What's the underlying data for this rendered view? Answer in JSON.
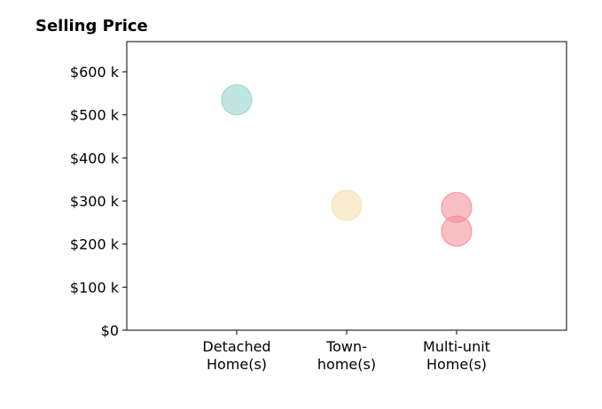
{
  "chart_data": {
    "type": "scatter",
    "title": "Selling Price",
    "xlabel": "",
    "ylabel": "",
    "categories": [
      [
        "Detached",
        "Home(s)"
      ],
      [
        "Town-",
        "home(s)"
      ],
      [
        "Multi-unit",
        "Home(s)"
      ]
    ],
    "xlim": [
      -1,
      3
    ],
    "ylim": [
      0,
      670
    ],
    "y_ticks": [
      0,
      100,
      200,
      300,
      400,
      500,
      600
    ],
    "y_tick_labels": [
      "$0",
      "$100 k",
      "$200 k",
      "$300 k",
      "$400 k",
      "$500 k",
      "$600 k"
    ],
    "grid": false,
    "points": [
      {
        "category": 0,
        "value": 535,
        "color": "#8ecfc9"
      },
      {
        "category": 1,
        "value": 290,
        "color": "#f5dfa8"
      },
      {
        "category": 2,
        "value": 285,
        "color": "#f28b95"
      },
      {
        "category": 2,
        "value": 230,
        "color": "#f28b95"
      }
    ]
  }
}
